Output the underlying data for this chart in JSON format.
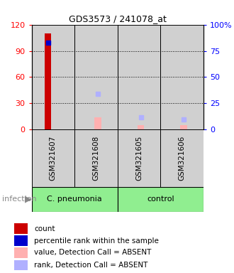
{
  "title": "GDS3573 / 241078_at",
  "samples": [
    "GSM321607",
    "GSM321608",
    "GSM321605",
    "GSM321606"
  ],
  "ylim_left": [
    0,
    120
  ],
  "ylim_right": [
    0,
    100
  ],
  "yticks_left": [
    0,
    30,
    60,
    90,
    120
  ],
  "yticks_right": [
    0,
    25,
    50,
    75,
    100
  ],
  "ytick_labels_left": [
    "0",
    "30",
    "60",
    "90",
    "120"
  ],
  "ytick_labels_right": [
    "0",
    "25",
    "50",
    "75",
    "100%"
  ],
  "count_values": [
    110,
    0,
    0,
    0
  ],
  "percentile_rank_values": [
    83,
    0,
    0,
    0
  ],
  "absent_value_values": [
    0,
    14,
    5,
    5
  ],
  "absent_rank_values": [
    0,
    34,
    12,
    10
  ],
  "color_count": "#cc0000",
  "color_percentile": "#0000cc",
  "color_absent_value": "#ffb0b0",
  "color_absent_rank": "#b0b0ff",
  "bar_bg_color": "#d0d0d0",
  "group1_label": "C. pneumonia",
  "group1_color": "#90EE90",
  "group2_label": "control",
  "group2_color": "#90EE90",
  "group_label": "infection",
  "legend_items": [
    {
      "label": "count",
      "color": "#cc0000"
    },
    {
      "label": "percentile rank within the sample",
      "color": "#0000cc"
    },
    {
      "label": "value, Detection Call = ABSENT",
      "color": "#ffb0b0"
    },
    {
      "label": "rank, Detection Call = ABSENT",
      "color": "#b0b0ff"
    }
  ]
}
